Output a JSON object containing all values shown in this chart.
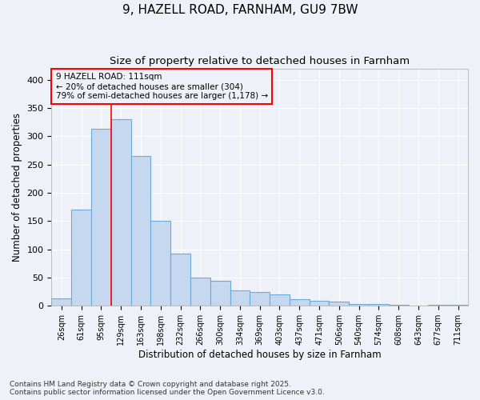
{
  "title1": "9, HAZELL ROAD, FARNHAM, GU9 7BW",
  "title2": "Size of property relative to detached houses in Farnham",
  "xlabel": "Distribution of detached houses by size in Farnham",
  "ylabel": "Number of detached properties",
  "categories": [
    "26sqm",
    "61sqm",
    "95sqm",
    "129sqm",
    "163sqm",
    "198sqm",
    "232sqm",
    "266sqm",
    "300sqm",
    "334sqm",
    "369sqm",
    "403sqm",
    "437sqm",
    "471sqm",
    "506sqm",
    "540sqm",
    "574sqm",
    "608sqm",
    "643sqm",
    "677sqm",
    "711sqm"
  ],
  "bar_values": [
    13,
    170,
    313,
    330,
    265,
    150,
    92,
    50,
    44,
    27,
    25,
    20,
    12,
    9,
    8,
    3,
    3,
    2,
    0,
    2,
    2
  ],
  "bar_color": "#c5d8f0",
  "bar_edge_color": "#6aaad4",
  "red_line_x": 2.5,
  "annotation_box_text": "9 HAZELL ROAD: 111sqm\n← 20% of detached houses are smaller (304)\n79% of semi-detached houses are larger (1,178) →",
  "ylim": [
    0,
    420
  ],
  "yticks": [
    0,
    50,
    100,
    150,
    200,
    250,
    300,
    350,
    400
  ],
  "footer_line1": "Contains HM Land Registry data © Crown copyright and database right 2025.",
  "footer_line2": "Contains public sector information licensed under the Open Government Licence v3.0.",
  "bg_color": "#eef2f8",
  "grid_color": "#ffffff",
  "title1_fontsize": 11,
  "title2_fontsize": 9.5,
  "tick_fontsize": 7,
  "label_fontsize": 8.5,
  "footer_fontsize": 6.5
}
